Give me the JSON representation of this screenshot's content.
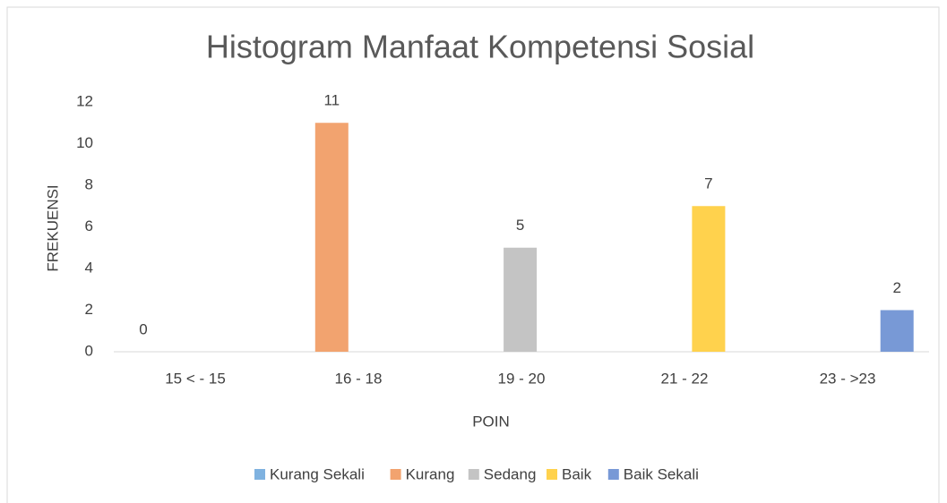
{
  "chart_data": {
    "type": "bar",
    "title": "Histogram Manfaat Kompetensi Sosial",
    "x_label": "POIN",
    "y_label": "FREKUENSI",
    "categories": [
      "15 < - 15",
      "16 - 18",
      "19 - 20",
      "21 - 22",
      "23 - >23"
    ],
    "series": [
      {
        "name": "Kurang Sekali",
        "color": "#7fb2e0",
        "values": [
          0,
          null,
          null,
          null,
          null
        ]
      },
      {
        "name": "Kurang",
        "color": "#f2a36f",
        "values": [
          null,
          11,
          null,
          null,
          null
        ]
      },
      {
        "name": "Sedang",
        "color": "#c4c4c4",
        "values": [
          null,
          null,
          5,
          null,
          null
        ]
      },
      {
        "name": "Baik",
        "color": "#ffd24d",
        "values": [
          null,
          null,
          null,
          7,
          null
        ]
      },
      {
        "name": "Baik Sekali",
        "color": "#7899d6",
        "values": [
          null,
          null,
          null,
          null,
          2
        ]
      }
    ],
    "ylim": [
      0,
      12
    ],
    "yticks": [
      0,
      2,
      4,
      6,
      8,
      10,
      12
    ],
    "grid": false,
    "legend": "bottom"
  }
}
